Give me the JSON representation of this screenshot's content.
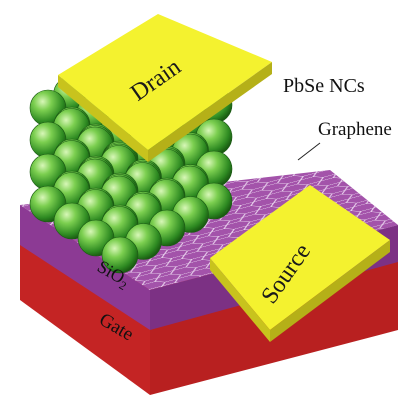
{
  "labels": {
    "drain": "Drain",
    "source": "Source",
    "nanocrystals": "PbSe NCs",
    "graphene": "Graphene",
    "oxide_main": "SiO",
    "oxide_sub": "2",
    "gate": "Gate"
  },
  "colors": {
    "gate_top": "#e84a4a",
    "gate_front": "#c92525",
    "gate_side": "#a61c1c",
    "oxide_top": "#a758ad",
    "oxide_front": "#8d3d95",
    "oxide_side": "#722f7a",
    "graphene_lines": "#e9d6ee",
    "electrode_top": "#f6f530",
    "electrode_side": "#c9c51e",
    "sphere_light": "#c9f0a6",
    "sphere_mid": "#5fbe3a",
    "sphere_dark": "#1f6e16"
  },
  "layers": [
    "Gate",
    "SiO2",
    "Graphene",
    "PbSe NCs",
    "Drain",
    "Source"
  ]
}
